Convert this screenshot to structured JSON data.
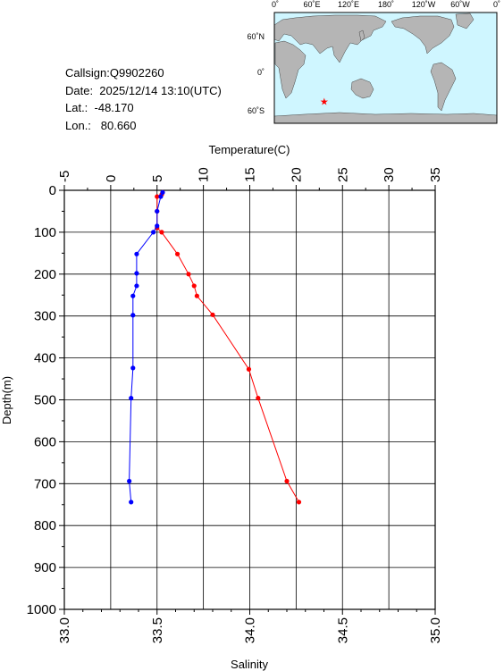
{
  "info": {
    "callsign": "Callsign:Q9902260",
    "date": "Date:  2025/12/14 13:10(UTC)",
    "lat": "Lat.:  -48.170",
    "lon": "Lon.:   80.660"
  },
  "map": {
    "lon_labels": [
      "0˚",
      "60˚E",
      "120˚E",
      "180˚",
      "120˚W",
      "60˚W",
      "0˚"
    ],
    "lat_labels": [
      "60˚N",
      "0˚",
      "60˚S"
    ],
    "ocean_color": "#cff6ff",
    "land_color": "#b5b5b5",
    "marker": {
      "symbol": "★",
      "color": "#ff0000",
      "lon": 80.66,
      "lat": -48.17
    }
  },
  "chart_data": {
    "type": "line",
    "xlabel_top": "Temperature(C)",
    "xlabel_bottom": "Salinity",
    "ylabel": "Depth(m)",
    "temperature_ticks": [
      "-5",
      "0",
      "5",
      "10",
      "15",
      "20",
      "25",
      "30",
      "35"
    ],
    "salinity_ticks": [
      "33.0",
      "33.5",
      "34.0",
      "34.5",
      "35.0"
    ],
    "depth_ticks": [
      "0",
      "100",
      "200",
      "300",
      "400",
      "500",
      "600",
      "700",
      "800",
      "900",
      "1000"
    ],
    "temperature_range": [
      -5,
      35
    ],
    "salinity_range": [
      33.0,
      35.0
    ],
    "depth_range": [
      0,
      1000
    ],
    "grid": true,
    "series": [
      {
        "variable": "temperature",
        "color": "#ff0000",
        "points": [
          {
            "value": 5.6,
            "depth": 5
          },
          {
            "value": 5.5,
            "depth": 10
          },
          {
            "value": 5.0,
            "depth": 15
          },
          {
            "value": 5.0,
            "depth": 50
          },
          {
            "value": 5.0,
            "depth": 90
          },
          {
            "value": 5.5,
            "depth": 100
          },
          {
            "value": 7.2,
            "depth": 152
          },
          {
            "value": 8.4,
            "depth": 200
          },
          {
            "value": 9.0,
            "depth": 228
          },
          {
            "value": 9.3,
            "depth": 252
          },
          {
            "value": 11.0,
            "depth": 297
          },
          {
            "value": 14.9,
            "depth": 427
          },
          {
            "value": 15.9,
            "depth": 496
          },
          {
            "value": 19.0,
            "depth": 694
          },
          {
            "value": 20.3,
            "depth": 744
          }
        ]
      },
      {
        "variable": "salinity",
        "color": "#0000ff",
        "points": [
          {
            "value": 33.53,
            "depth": 5
          },
          {
            "value": 33.52,
            "depth": 15
          },
          {
            "value": 33.5,
            "depth": 50
          },
          {
            "value": 33.5,
            "depth": 85
          },
          {
            "value": 33.48,
            "depth": 100
          },
          {
            "value": 33.39,
            "depth": 152
          },
          {
            "value": 33.39,
            "depth": 198
          },
          {
            "value": 33.39,
            "depth": 228
          },
          {
            "value": 33.37,
            "depth": 252
          },
          {
            "value": 33.37,
            "depth": 298
          },
          {
            "value": 33.37,
            "depth": 424
          },
          {
            "value": 33.36,
            "depth": 496
          },
          {
            "value": 33.35,
            "depth": 694
          },
          {
            "value": 33.36,
            "depth": 744
          }
        ]
      }
    ]
  }
}
